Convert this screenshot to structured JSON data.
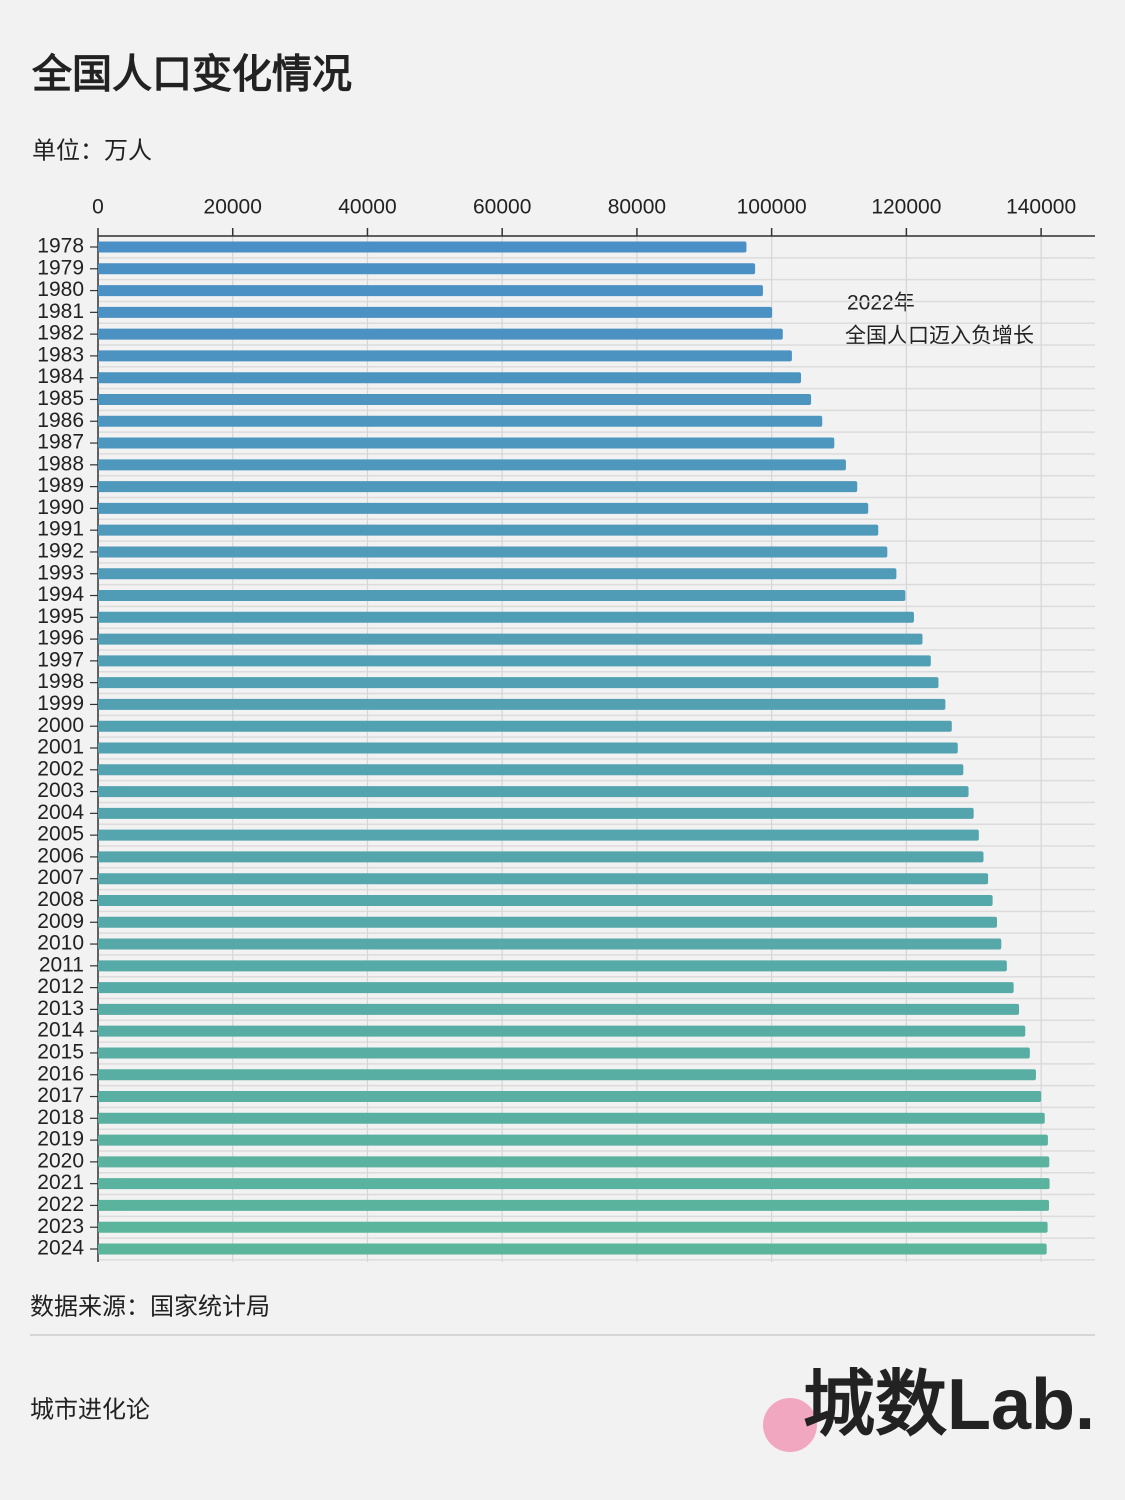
{
  "chart_data": {
    "type": "hbar",
    "title": "全国人口变化情况",
    "subtitle": "单位：万人",
    "source": "数据来源：国家统计局",
    "footer": "城市进化论",
    "logo": "城数Lab.",
    "annotation": [
      "2022年",
      "全国人口迈入负增长"
    ],
    "categories": [
      "1978",
      "1979",
      "1980",
      "1981",
      "1982",
      "1983",
      "1984",
      "1985",
      "1986",
      "1987",
      "1988",
      "1989",
      "1990",
      "1991",
      "1992",
      "1993",
      "1994",
      "1995",
      "1996",
      "1997",
      "1998",
      "1999",
      "2000",
      "2001",
      "2002",
      "2003",
      "2004",
      "2005",
      "2006",
      "2007",
      "2008",
      "2009",
      "2010",
      "2011",
      "2012",
      "2013",
      "2014",
      "2015",
      "2016",
      "2017",
      "2018",
      "2019",
      "2020",
      "2021",
      "2022",
      "2023",
      "2024"
    ],
    "values": [
      96259,
      97542,
      98705,
      100072,
      101654,
      103008,
      104357,
      105851,
      107507,
      109300,
      111026,
      112704,
      114333,
      115823,
      117171,
      118517,
      119850,
      121121,
      122389,
      123626,
      124761,
      125786,
      126743,
      127627,
      128453,
      129227,
      129988,
      130756,
      131448,
      132129,
      132802,
      133450,
      134091,
      134916,
      135922,
      136726,
      137646,
      138326,
      139232,
      140011,
      140541,
      141008,
      141212,
      141260,
      141175,
      140967,
      140828
    ],
    "gradient": [
      "#4a8fc6",
      "#5bb59b"
    ],
    "xlim": [
      0,
      148000
    ],
    "xticks": [
      0,
      20000,
      40000,
      60000,
      80000,
      100000,
      120000,
      140000
    ],
    "grid": true
  }
}
